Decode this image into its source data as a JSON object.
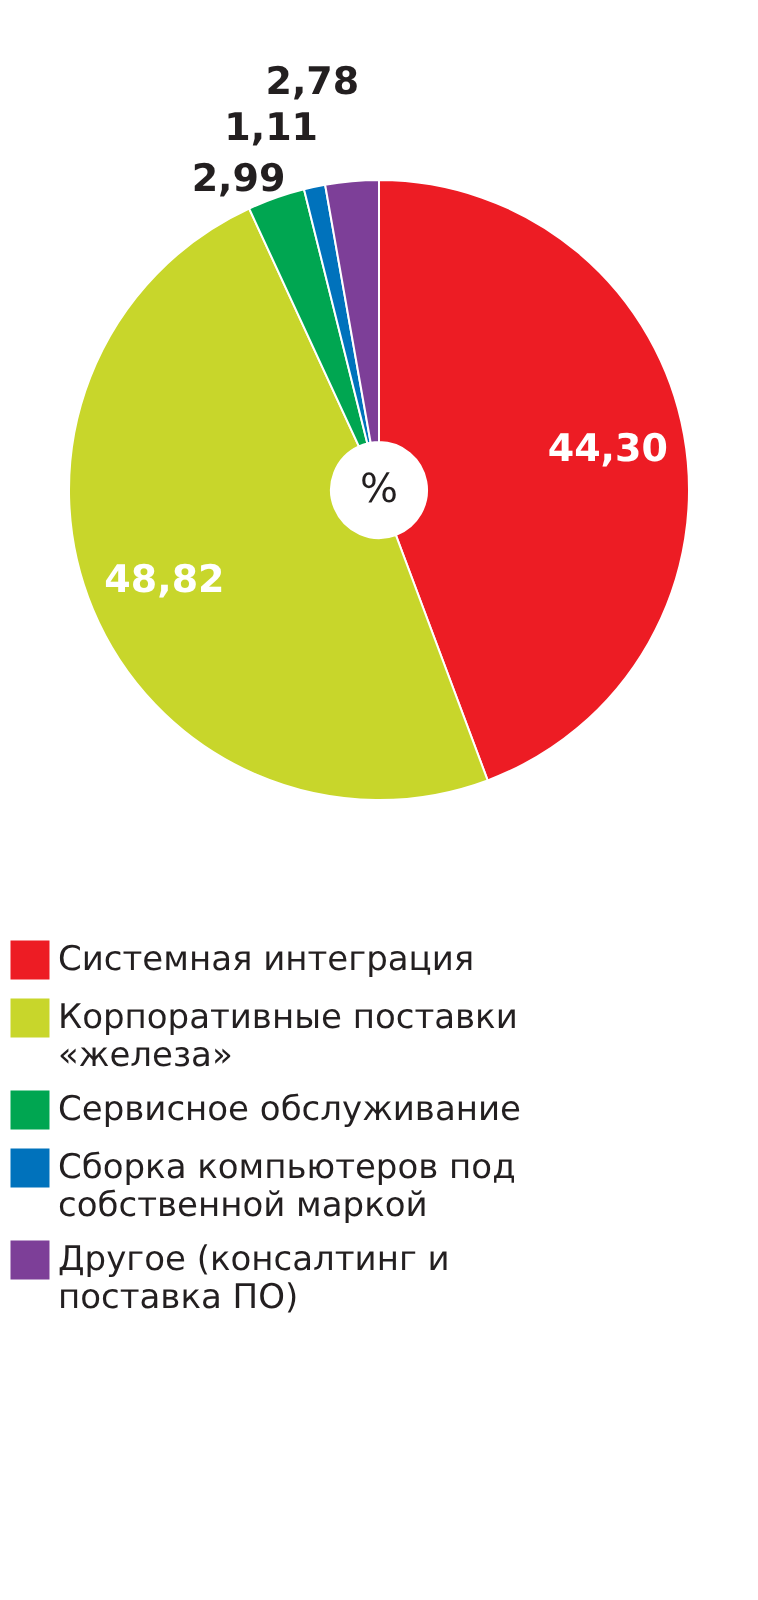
{
  "chart_data": {
    "type": "donut",
    "categories": [
      "Системная интеграция",
      "Корпоративные поставки «железа»",
      "Сервисное обслуживание",
      "Сборка компьютеров под собственной маркой",
      "Другое (консалтинг и поставка ПО)"
    ],
    "values": [
      44.3,
      48.82,
      2.99,
      1.11,
      2.78
    ],
    "value_labels": [
      "44,30",
      "48,82",
      "2,99",
      "1,11",
      "2,78"
    ],
    "colors": [
      "#ed1c24",
      "#c8d62b",
      "#00a651",
      "#0072bc",
      "#7d3f98"
    ],
    "annotations": [
      "%"
    ],
    "legend": "bottom"
  }
}
